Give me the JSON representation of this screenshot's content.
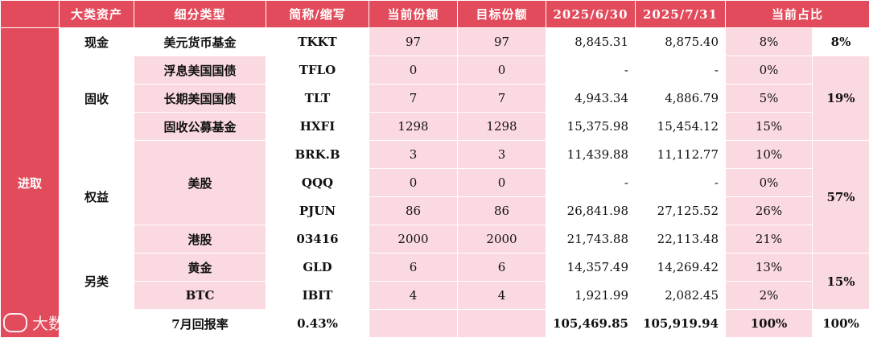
{
  "headers": [
    "大类资产",
    "细分类型",
    "简称/缩写",
    "当前份额",
    "目标份额",
    "2025/6/30",
    "2025/7/31",
    "当前占比"
  ],
  "group_label": "进取",
  "categories": {
    "cash": "现金",
    "fixed_income": "固收",
    "equity": "权益",
    "alternative": "另类"
  },
  "subtypes": {
    "us_equity": "美股",
    "hk_equity": "港股"
  },
  "rows": [
    {
      "subtype": "美元货币基金",
      "ticker": "TKKT",
      "current": "97",
      "target": "97",
      "jun": "8,845.31",
      "jul": "8,875.40",
      "pct": "8%"
    },
    {
      "subtype": "浮息美国国债",
      "ticker": "TFLO",
      "current": "0",
      "target": "0",
      "jun": "-",
      "jul": "-",
      "pct": "0%"
    },
    {
      "subtype": "长期美国国债",
      "ticker": "TLT",
      "current": "7",
      "target": "7",
      "jun": "4,943.34",
      "jul": "4,886.79",
      "pct": "5%"
    },
    {
      "subtype": "固收公募基金",
      "ticker": "HXFI",
      "current": "1298",
      "target": "1298",
      "jun": "15,375.98",
      "jul": "15,454.12",
      "pct": "15%"
    },
    {
      "subtype": "",
      "ticker": "BRK.B",
      "current": "3",
      "target": "3",
      "jun": "11,439.88",
      "jul": "11,112.77",
      "pct": "10%"
    },
    {
      "subtype": "",
      "ticker": "QQQ",
      "current": "0",
      "target": "0",
      "jun": "-",
      "jul": "-",
      "pct": "0%"
    },
    {
      "subtype": "",
      "ticker": "PJUN",
      "current": "86",
      "target": "86",
      "jun": "26,841.98",
      "jul": "27,125.52",
      "pct": "26%"
    },
    {
      "subtype": "",
      "ticker": "03416",
      "current": "2000",
      "target": "2000",
      "jun": "21,743.88",
      "jul": "22,113.48",
      "pct": "21%"
    },
    {
      "subtype": "黄金",
      "ticker": "GLD",
      "current": "6",
      "target": "6",
      "jun": "14,357.49",
      "jul": "14,269.42",
      "pct": "13%"
    },
    {
      "subtype": "BTC",
      "ticker": "IBIT",
      "current": "4",
      "target": "4",
      "jun": "1,921.99",
      "jul": "2,082.45",
      "pct": "2%"
    }
  ],
  "category_totals": {
    "cash": "8%",
    "fixed_income": "19%",
    "equity": "57%",
    "alternative": "15%"
  },
  "summary": {
    "label": "7月回报率",
    "return": "0.43%",
    "jun_total": "105,469.85",
    "jul_total": "105,919.94",
    "pct": "100%",
    "pct_total": "100%"
  },
  "watermark": "大数跨境",
  "colors": {
    "header_red": "#e24b5b",
    "row_pink": "#fbd9e0",
    "row_white": "#ffffff"
  }
}
